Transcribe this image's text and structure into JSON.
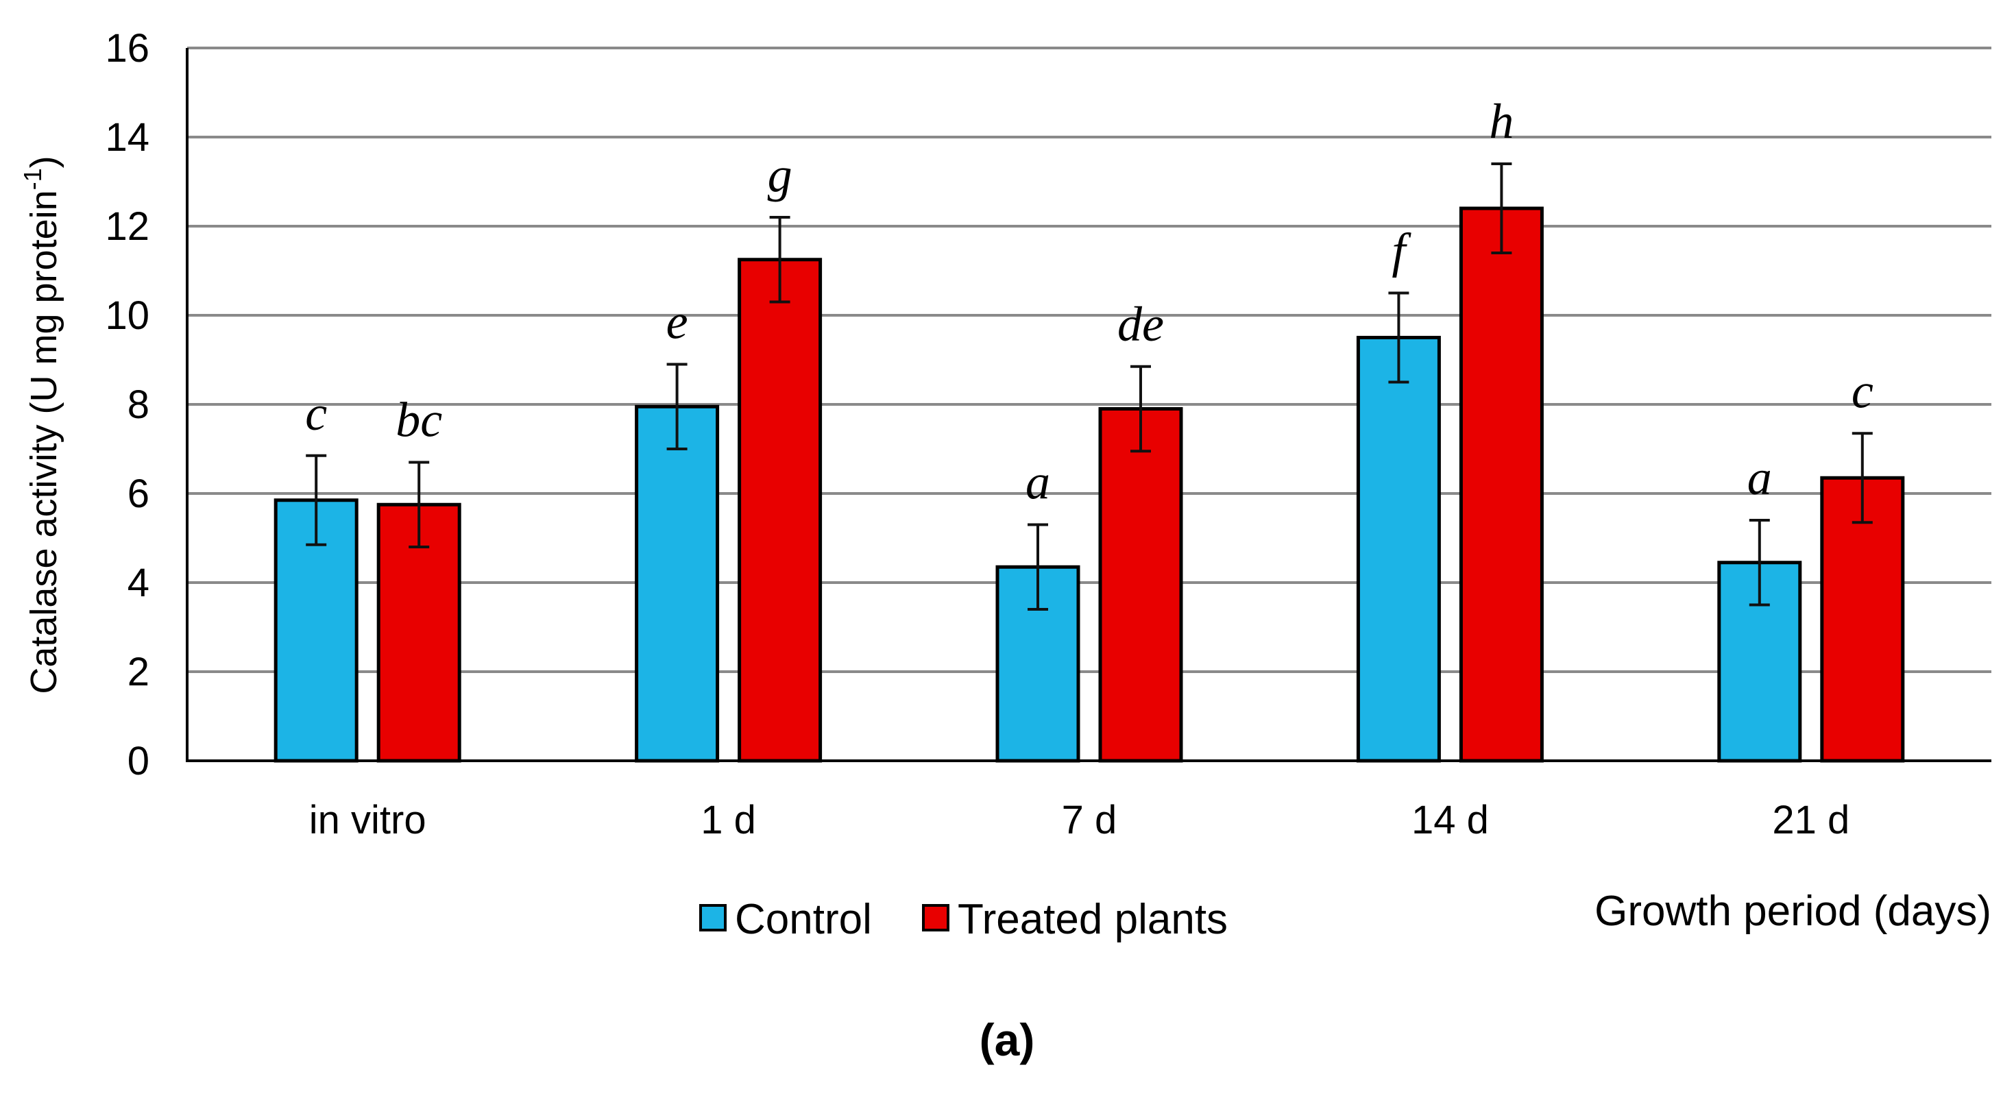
{
  "chart_data": {
    "type": "bar",
    "ylabel": "Catalase activity (U mg protein",
    "ylabel_superscript": "-1",
    "ylabel_close": ")",
    "xlabel": "Growth period (days)",
    "panel_label": "(a)",
    "ylim": [
      0,
      16
    ],
    "yticks": [
      0,
      2,
      4,
      6,
      8,
      10,
      12,
      14,
      16
    ],
    "grid": true,
    "legend_position": "bottom-center",
    "categories": [
      "in vitro",
      "1 d",
      "7 d",
      "14 d",
      "21 d"
    ],
    "series": [
      {
        "name": "Control",
        "color": "#1CB4E6",
        "values": [
          5.85,
          7.95,
          4.35,
          9.5,
          4.45
        ],
        "errors": [
          1.0,
          0.95,
          0.95,
          1.0,
          0.95
        ],
        "letters": [
          "c",
          "e",
          "a",
          "f",
          "a"
        ]
      },
      {
        "name": "Treated plants",
        "color": "#E80000",
        "values": [
          5.75,
          11.25,
          7.9,
          12.4,
          6.35
        ],
        "errors": [
          0.95,
          0.95,
          0.95,
          1.0,
          1.0
        ],
        "letters": [
          "bc",
          "g",
          "de",
          "h",
          "c"
        ]
      }
    ]
  }
}
